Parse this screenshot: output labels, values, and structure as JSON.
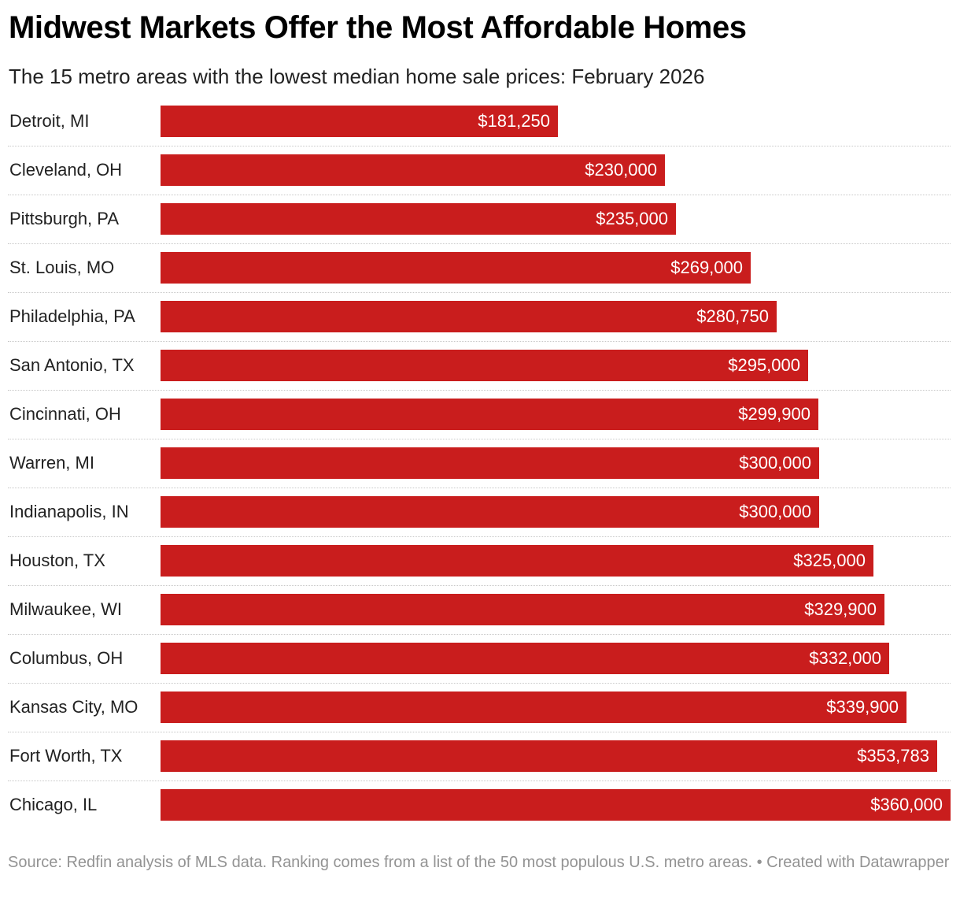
{
  "title": "Midwest Markets Offer the Most Affordable Homes",
  "subtitle": "The 15 metro areas with the lowest median home sale prices: February 2026",
  "source": "Source: Redfin analysis of MLS data. Ranking comes from a list of the 50 most populous U.S. metro areas. • Created with Datawrapper",
  "colors": {
    "bar": "#c91d1d",
    "bar_label": "#ffffff",
    "divider": "#c8c8c8",
    "source_text": "#939393"
  },
  "chart_data": {
    "type": "bar",
    "orientation": "horizontal",
    "title": "Midwest Markets Offer the Most Affordable Homes",
    "subtitle": "The 15 metro areas with the lowest median home sale prices: February 2026",
    "xlabel": "",
    "ylabel": "",
    "xlim": [
      0,
      360000
    ],
    "grid": false,
    "legend": "none",
    "categories": [
      "Detroit, MI",
      "Cleveland, OH",
      "Pittsburgh, PA",
      "St. Louis, MO",
      "Philadelphia, PA",
      "San Antonio, TX",
      "Cincinnati, OH",
      "Warren, MI",
      "Indianapolis, IN",
      "Houston, TX",
      "Milwaukee, WI",
      "Columbus, OH",
      "Kansas City, MO",
      "Fort Worth, TX",
      "Chicago, IL"
    ],
    "values": [
      181250,
      230000,
      235000,
      269000,
      280750,
      295000,
      299900,
      300000,
      300000,
      325000,
      329900,
      332000,
      339900,
      353783,
      360000
    ],
    "value_labels": [
      "$181,250",
      "$230,000",
      "$235,000",
      "$269,000",
      "$280,750",
      "$295,000",
      "$299,900",
      "$300,000",
      "$300,000",
      "$325,000",
      "$329,900",
      "$332,000",
      "$339,900",
      "$353,783",
      "$360,000"
    ]
  }
}
